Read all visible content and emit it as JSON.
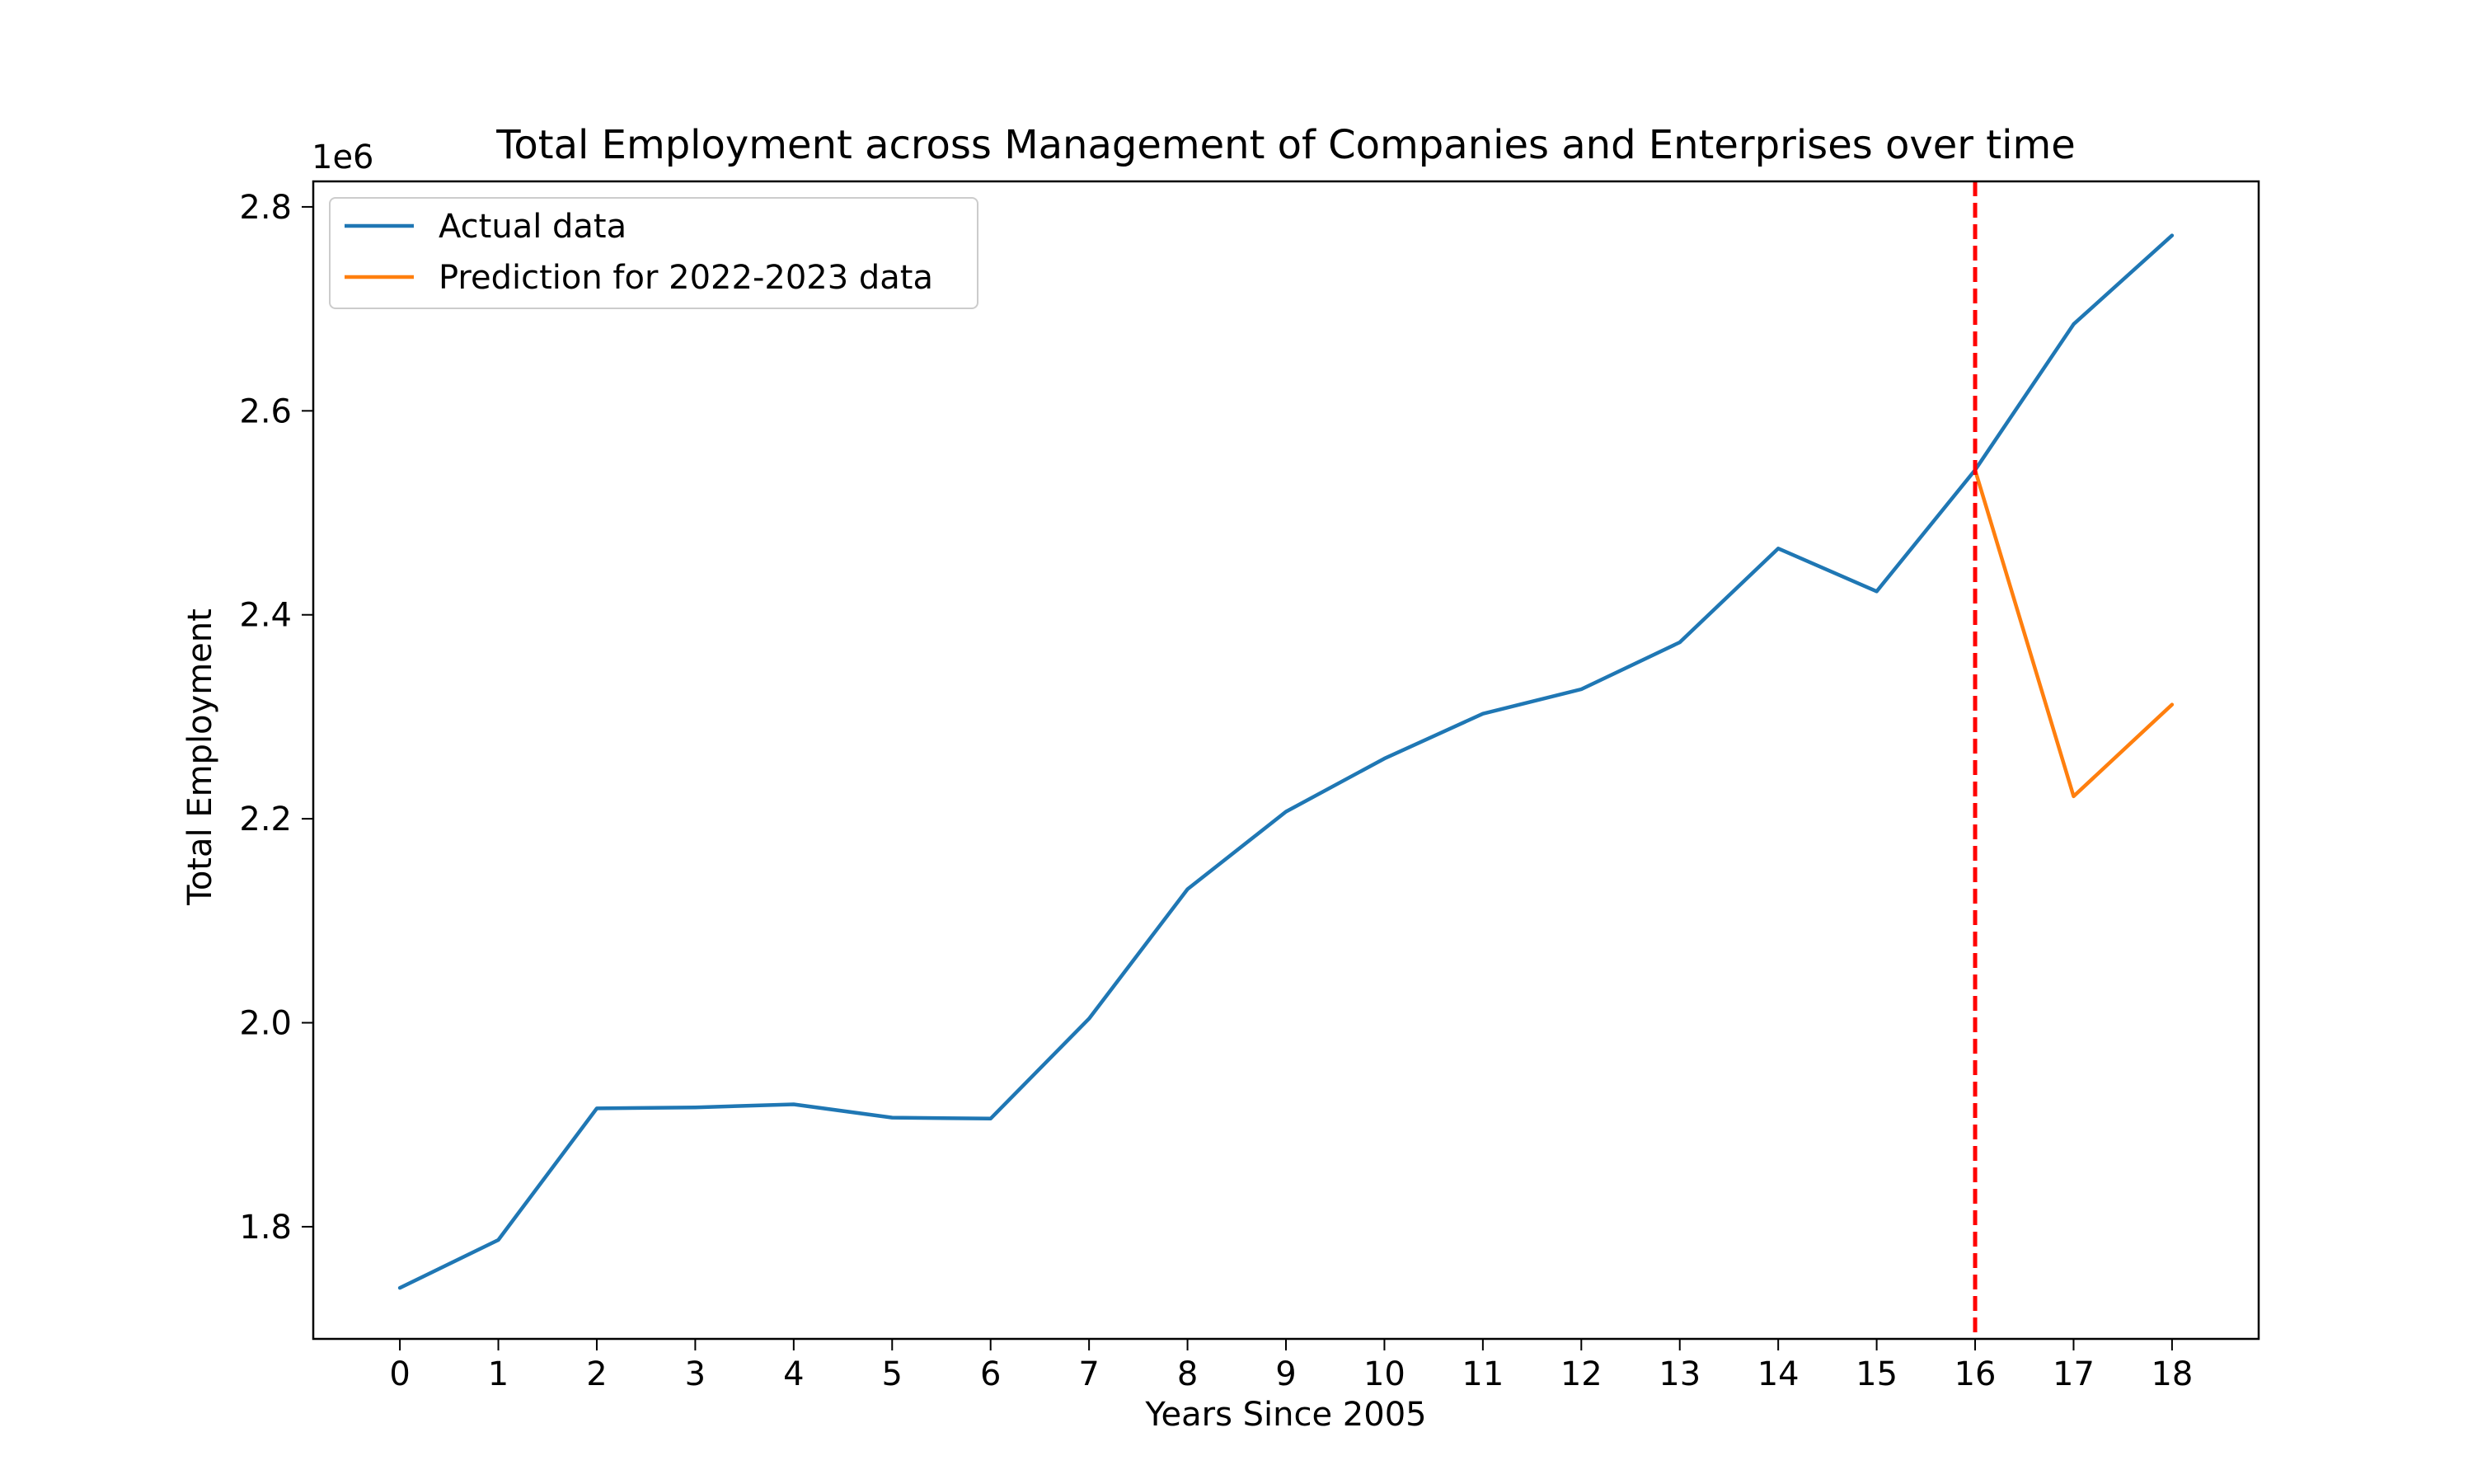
{
  "chart_data": {
    "type": "line",
    "title": "Total Employment across Management of Companies and Enterprises over time",
    "xlabel": "Years Since 2005",
    "ylabel": "Total Employment",
    "y_offset_label": "1e6",
    "y_scale": 1000000,
    "xlim": [
      -0.88,
      18.88
    ],
    "ylim": [
      1690000,
      2825000
    ],
    "x_ticks": [
      0,
      1,
      2,
      3,
      4,
      5,
      6,
      7,
      8,
      9,
      10,
      11,
      12,
      13,
      14,
      15,
      16,
      17,
      18
    ],
    "x_tick_labels": [
      "0",
      "1",
      "2",
      "3",
      "4",
      "5",
      "6",
      "7",
      "8",
      "9",
      "10",
      "11",
      "12",
      "13",
      "14",
      "15",
      "16",
      "17",
      "18"
    ],
    "y_ticks": [
      1800000,
      2000000,
      2200000,
      2400000,
      2600000,
      2800000
    ],
    "y_tick_labels": [
      "1.8",
      "2.0",
      "2.2",
      "2.4",
      "2.6",
      "2.8"
    ],
    "grid": false,
    "legend_position": "upper-left",
    "vline": {
      "x": 16,
      "color": "#ff0000",
      "style": "dashed"
    },
    "series": [
      {
        "name": "Actual data",
        "color": "#1f77b4",
        "x": [
          0,
          1,
          2,
          3,
          4,
          5,
          6,
          7,
          8,
          9,
          10,
          11,
          12,
          13,
          14,
          15,
          16,
          17,
          18
        ],
        "y": [
          1740000,
          1787000,
          1916000,
          1917000,
          1920000,
          1907000,
          1906000,
          2004000,
          2131000,
          2207000,
          2259000,
          2303000,
          2327000,
          2373000,
          2465000,
          2423000,
          2542000,
          2685000,
          2772000
        ]
      },
      {
        "name": "Prediction for 2022-2023 data",
        "color": "#ff7f0e",
        "x": [
          16,
          17,
          18
        ],
        "y": [
          2542000,
          2222000,
          2312000
        ]
      }
    ]
  }
}
